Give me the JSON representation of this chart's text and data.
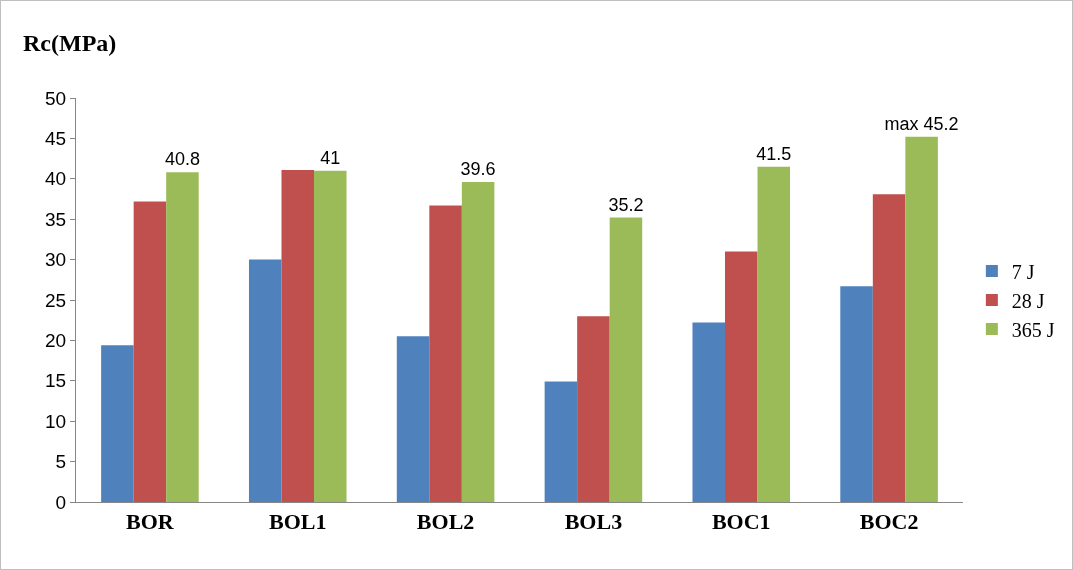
{
  "chart_data": {
    "type": "bar",
    "ylabel": "Rc(MPa)",
    "categories": [
      "BOR",
      "BOL1",
      "BOL2",
      "BOL3",
      "BOC1",
      "BOC2"
    ],
    "series": [
      {
        "name": "7 J",
        "color": "#4f81bd",
        "values": [
          19.4,
          30,
          20.5,
          14.9,
          22.2,
          26.7
        ]
      },
      {
        "name": "28 J",
        "color": "#c0504d",
        "values": [
          37.2,
          41.1,
          36.7,
          23,
          31,
          38.1
        ]
      },
      {
        "name": "365 J",
        "color": "#9bbb59",
        "values": [
          40.8,
          41,
          39.6,
          35.2,
          41.5,
          45.2
        ],
        "value_labels": [
          "40.8",
          "41",
          "39.6",
          "35.2",
          "41.5",
          "max 45.2"
        ]
      }
    ],
    "ylim": [
      0,
      50
    ],
    "yticks": [
      0,
      5,
      10,
      15,
      20,
      25,
      30,
      35,
      40,
      45,
      50
    ],
    "grid": false,
    "legend": "right"
  }
}
